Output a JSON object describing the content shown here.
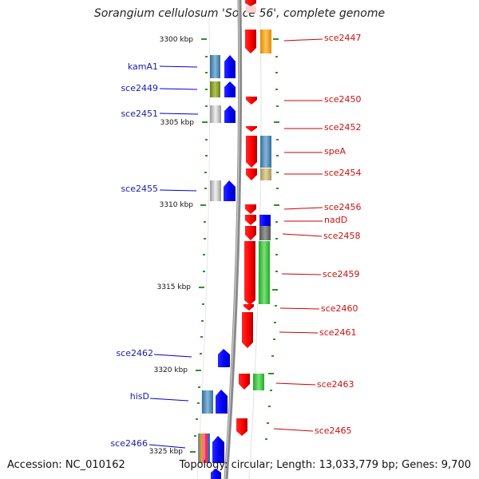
{
  "title": "Sorangium cellulosum 'So ce 56', complete genome",
  "footer": {
    "accession": "Accession: NC_010162",
    "summary": "Topology: circular; Length: 13,033,779 bp; Genes: 9,700"
  },
  "colors": {
    "backbone": "#8a8a8a",
    "tick": "#2f8f2f",
    "label_left": "#1a1aa8",
    "label_right": "#cc1111",
    "leader_left": "#0000cc",
    "leader_right": "#cc0000"
  },
  "scale_labels": [
    "3300 kbp",
    "3305 kbp",
    "3310 kbp",
    "3315 kbp",
    "3320 kbp",
    "3325 kbp"
  ],
  "left_labels": [
    "kamA1",
    "sce2449",
    "sce2451",
    "sce2455",
    "sce2462",
    "hisD",
    "sce2466"
  ],
  "right_labels": [
    "sce2447",
    "sce2450",
    "sce2452",
    "speA",
    "sce2454",
    "sce2456",
    "nadD",
    "sce2458",
    "sce2459",
    "sce2460",
    "sce2461",
    "sce2463",
    "sce2465"
  ]
}
